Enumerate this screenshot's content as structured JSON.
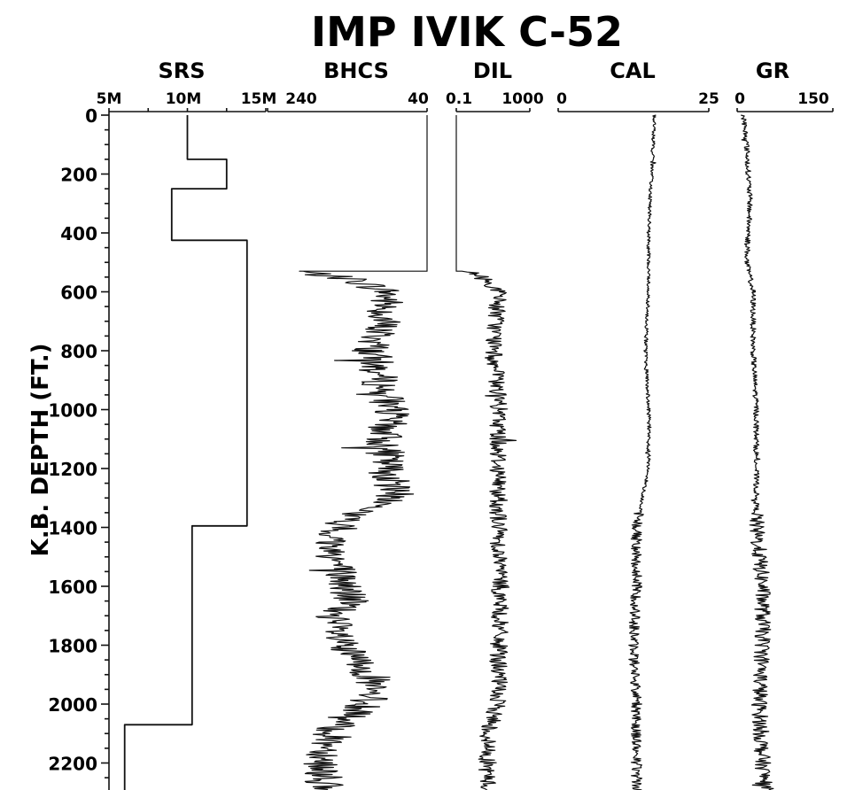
{
  "chart_data": {
    "type": "line",
    "title": "IMP IVIK C-52",
    "ylabel": "K.B. DEPTH (FT.)",
    "ylim": [
      0,
      2300
    ],
    "y_ticks": [
      0,
      200,
      400,
      600,
      800,
      1000,
      1200,
      1400,
      1600,
      1800,
      2000,
      2200
    ],
    "y_tick_labels": [
      "0",
      "200",
      "400",
      "600",
      "800",
      "1000",
      "1200",
      "1400",
      "1600",
      "1800",
      "2000",
      "2200"
    ],
    "tracks": [
      {
        "name": "SRS",
        "scale_labels": [
          "5M",
          "10M",
          "15M"
        ],
        "scale_values": [
          5,
          10,
          15
        ],
        "style": "step",
        "points": [
          [
            10,
            0
          ],
          [
            10,
            150
          ],
          [
            12.5,
            150
          ],
          [
            12.5,
            250
          ],
          [
            9,
            250
          ],
          [
            9,
            425
          ],
          [
            13.8,
            425
          ],
          [
            13.8,
            1395
          ],
          [
            10.3,
            1395
          ],
          [
            10.3,
            2070
          ],
          [
            6,
            2070
          ],
          [
            6,
            2300
          ]
        ]
      },
      {
        "name": "BHCS",
        "scale_labels": [
          "240",
          "40"
        ],
        "scale_values": [
          240,
          40
        ],
        "style": "noisy",
        "points": [
          [
            40,
            0
          ],
          [
            40,
            530
          ],
          [
            200,
            530
          ],
          [
            130,
            560
          ],
          [
            90,
            600
          ],
          [
            95,
            700
          ],
          [
            110,
            800
          ],
          [
            100,
            900
          ],
          [
            85,
            1000
          ],
          [
            95,
            1100
          ],
          [
            90,
            1200
          ],
          [
            80,
            1300
          ],
          [
            150,
            1380
          ],
          [
            160,
            1450
          ],
          [
            150,
            1550
          ],
          [
            135,
            1650
          ],
          [
            160,
            1700
          ],
          [
            150,
            1800
          ],
          [
            110,
            1900
          ],
          [
            115,
            2000
          ],
          [
            155,
            2070
          ],
          [
            170,
            2200
          ],
          [
            170,
            2300
          ]
        ]
      },
      {
        "name": "DIL",
        "scale_labels": [
          "0.1",
          "1000"
        ],
        "scale_values": [
          0.1,
          1000
        ],
        "style": "noisy",
        "points": [
          [
            0.1,
            0
          ],
          [
            0.1,
            530
          ],
          [
            1,
            540
          ],
          [
            5,
            570
          ],
          [
            20,
            600
          ],
          [
            10,
            800
          ],
          [
            20,
            1000
          ],
          [
            20,
            1200
          ],
          [
            20,
            1400
          ],
          [
            25,
            1600
          ],
          [
            20,
            1800
          ],
          [
            20,
            1950
          ],
          [
            10,
            2050
          ],
          [
            5,
            2100
          ],
          [
            5,
            2300
          ]
        ]
      },
      {
        "name": "CAL",
        "scale_labels": [
          "0",
          "25"
        ],
        "scale_values": [
          0,
          25
        ],
        "style": "noisy",
        "points": [
          [
            16,
            0
          ],
          [
            15.5,
            200
          ],
          [
            15,
            400
          ],
          [
            15,
            600
          ],
          [
            14.5,
            800
          ],
          [
            15,
            1000
          ],
          [
            15,
            1200
          ],
          [
            13,
            1400
          ],
          [
            13,
            1600
          ],
          [
            12.5,
            1800
          ],
          [
            13,
            2000
          ],
          [
            13,
            2300
          ]
        ]
      },
      {
        "name": "GR",
        "scale_labels": [
          "0",
          "150"
        ],
        "scale_values": [
          0,
          150
        ],
        "style": "noisy",
        "points": [
          [
            10,
            0
          ],
          [
            15,
            100
          ],
          [
            20,
            300
          ],
          [
            15,
            500
          ],
          [
            25,
            600
          ],
          [
            25,
            800
          ],
          [
            30,
            1000
          ],
          [
            30,
            1200
          ],
          [
            30,
            1400
          ],
          [
            40,
            1600
          ],
          [
            40,
            1800
          ],
          [
            35,
            2000
          ],
          [
            40,
            2200
          ],
          [
            45,
            2300
          ]
        ]
      }
    ]
  }
}
